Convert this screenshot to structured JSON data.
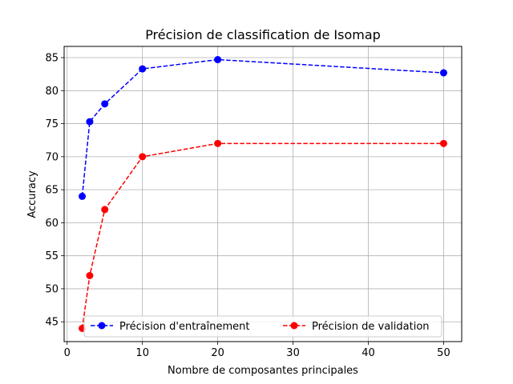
{
  "chart_data": {
    "type": "line",
    "title": "Précision de classification de Isomap",
    "xlabel": "Nombre de composantes principales",
    "ylabel": "Accuracy",
    "xlim": [
      -0.4,
      52.4
    ],
    "ylim": [
      42.0,
      86.7
    ],
    "xticks": [
      0,
      10,
      20,
      30,
      40,
      50
    ],
    "yticks": [
      45,
      50,
      55,
      60,
      65,
      70,
      75,
      80,
      85
    ],
    "grid": true,
    "legend_position": "bottom-center",
    "series": [
      {
        "name": "Précision d'entraînement",
        "color": "#0000ff",
        "line_style": "dashed",
        "marker": "circle",
        "x": [
          2,
          3,
          5,
          10,
          20,
          50
        ],
        "y": [
          64.0,
          75.3,
          78.0,
          83.3,
          84.7,
          82.7
        ]
      },
      {
        "name": "Précision de validation",
        "color": "#ff0000",
        "line_style": "dashed",
        "marker": "circle",
        "x": [
          2,
          3,
          5,
          10,
          20,
          50
        ],
        "y": [
          44.0,
          52.0,
          62.0,
          70.0,
          72.0,
          72.0
        ]
      }
    ]
  }
}
